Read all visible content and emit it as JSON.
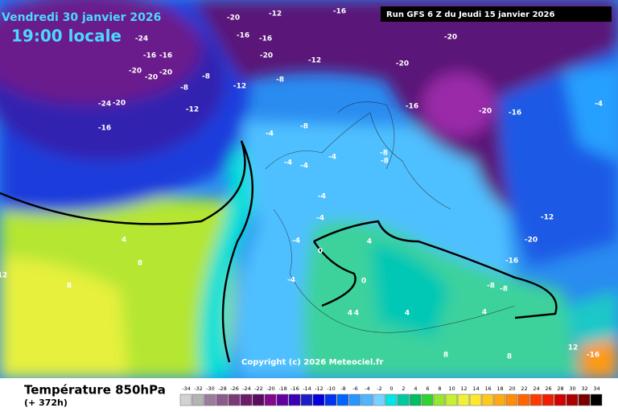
{
  "header": {
    "date": "Vendredi 30 janvier 2026",
    "time": "19:00 locale",
    "run": "Run GFS 6 Z du Jeudi 15 janvier 2026"
  },
  "copyright": "Copyright (c) 2026 Meteociel.fr",
  "footer": {
    "title": "Température 850hPa",
    "subtitle": "(+ 372h)"
  },
  "legend": {
    "values": [
      -34,
      -32,
      -30,
      -28,
      -26,
      -24,
      -22,
      -20,
      -18,
      -16,
      -14,
      -12,
      -10,
      -8,
      -6,
      -4,
      -2,
      0,
      2,
      4,
      6,
      8,
      10,
      12,
      14,
      16,
      18,
      20,
      22,
      24,
      26,
      28,
      30,
      32,
      34
    ],
    "colors": [
      "#d2d2d2",
      "#b4b4b4",
      "#9c7c9c",
      "#8c5a8c",
      "#7a3a7a",
      "#6c1c6c",
      "#5c0a64",
      "#800a8c",
      "#6400a0",
      "#3c00b4",
      "#1e1ec8",
      "#0000dc",
      "#0032f0",
      "#0064ff",
      "#2896ff",
      "#50b4ff",
      "#78d2ff",
      "#00e6e6",
      "#00c8a0",
      "#00be64",
      "#32d232",
      "#96e632",
      "#c8f032",
      "#f0f03c",
      "#ffe632",
      "#ffc81e",
      "#ffaa14",
      "#ff8c0a",
      "#ff6400",
      "#ff3c00",
      "#f01e00",
      "#d20000",
      "#aa0000",
      "#780000",
      "#000000"
    ]
  },
  "map_labels": [
    "-20",
    "-16",
    "-12",
    "-16",
    "-20",
    "-24",
    "-16",
    "-16",
    "-20",
    "-20",
    "-20",
    "-24",
    "-20",
    "-16",
    "-8",
    "-8",
    "-12",
    "-12",
    "-8",
    "-4",
    "-8",
    "-20",
    "-20",
    "-16",
    "-20",
    "-16",
    "-12",
    "-16",
    "-4",
    "-4",
    "-4",
    "-4",
    "-4",
    "-4",
    "-8",
    "-8",
    "-4",
    "4",
    "4",
    "4",
    "8",
    "8",
    "0",
    "0",
    "4",
    "4",
    "8",
    "8",
    "-8",
    "-8",
    "-12",
    "-16",
    "-20",
    "12",
    "12",
    "-16",
    "-4",
    "4"
  ]
}
